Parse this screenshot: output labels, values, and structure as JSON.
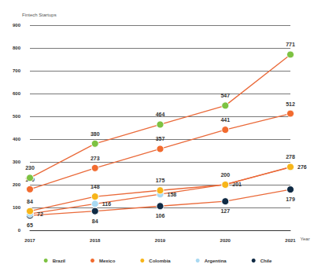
{
  "chart_data": {
    "type": "line",
    "y_label": "Fintech Startups",
    "x_label": "Year",
    "categories": [
      "2017",
      "2018",
      "2019",
      "2020",
      "2021"
    ],
    "series": [
      {
        "name": "Brazil",
        "color": "#7dc242",
        "values": [
          230,
          380,
          464,
          547,
          771
        ]
      },
      {
        "name": "Mexico",
        "color": "#f26b2f",
        "values": [
          180,
          273,
          357,
          441,
          512
        ]
      },
      {
        "name": "Colombia",
        "color": "#f7b519",
        "values": [
          84,
          148,
          175,
          200,
          278
        ]
      },
      {
        "name": "Argentina",
        "color": "#a9d9f2",
        "values": [
          72,
          116,
          158,
          201,
          276
        ]
      },
      {
        "name": "Chile",
        "color": "#0f2a44",
        "values": [
          65,
          84,
          106,
          127,
          179
        ]
      }
    ],
    "ylim": [
      0,
      900
    ],
    "yticks": [
      0,
      100,
      200,
      300,
      400,
      500,
      600,
      700,
      800,
      900
    ],
    "grid": true,
    "legend": "bottom",
    "marker": "circle",
    "data_labels": true
  }
}
